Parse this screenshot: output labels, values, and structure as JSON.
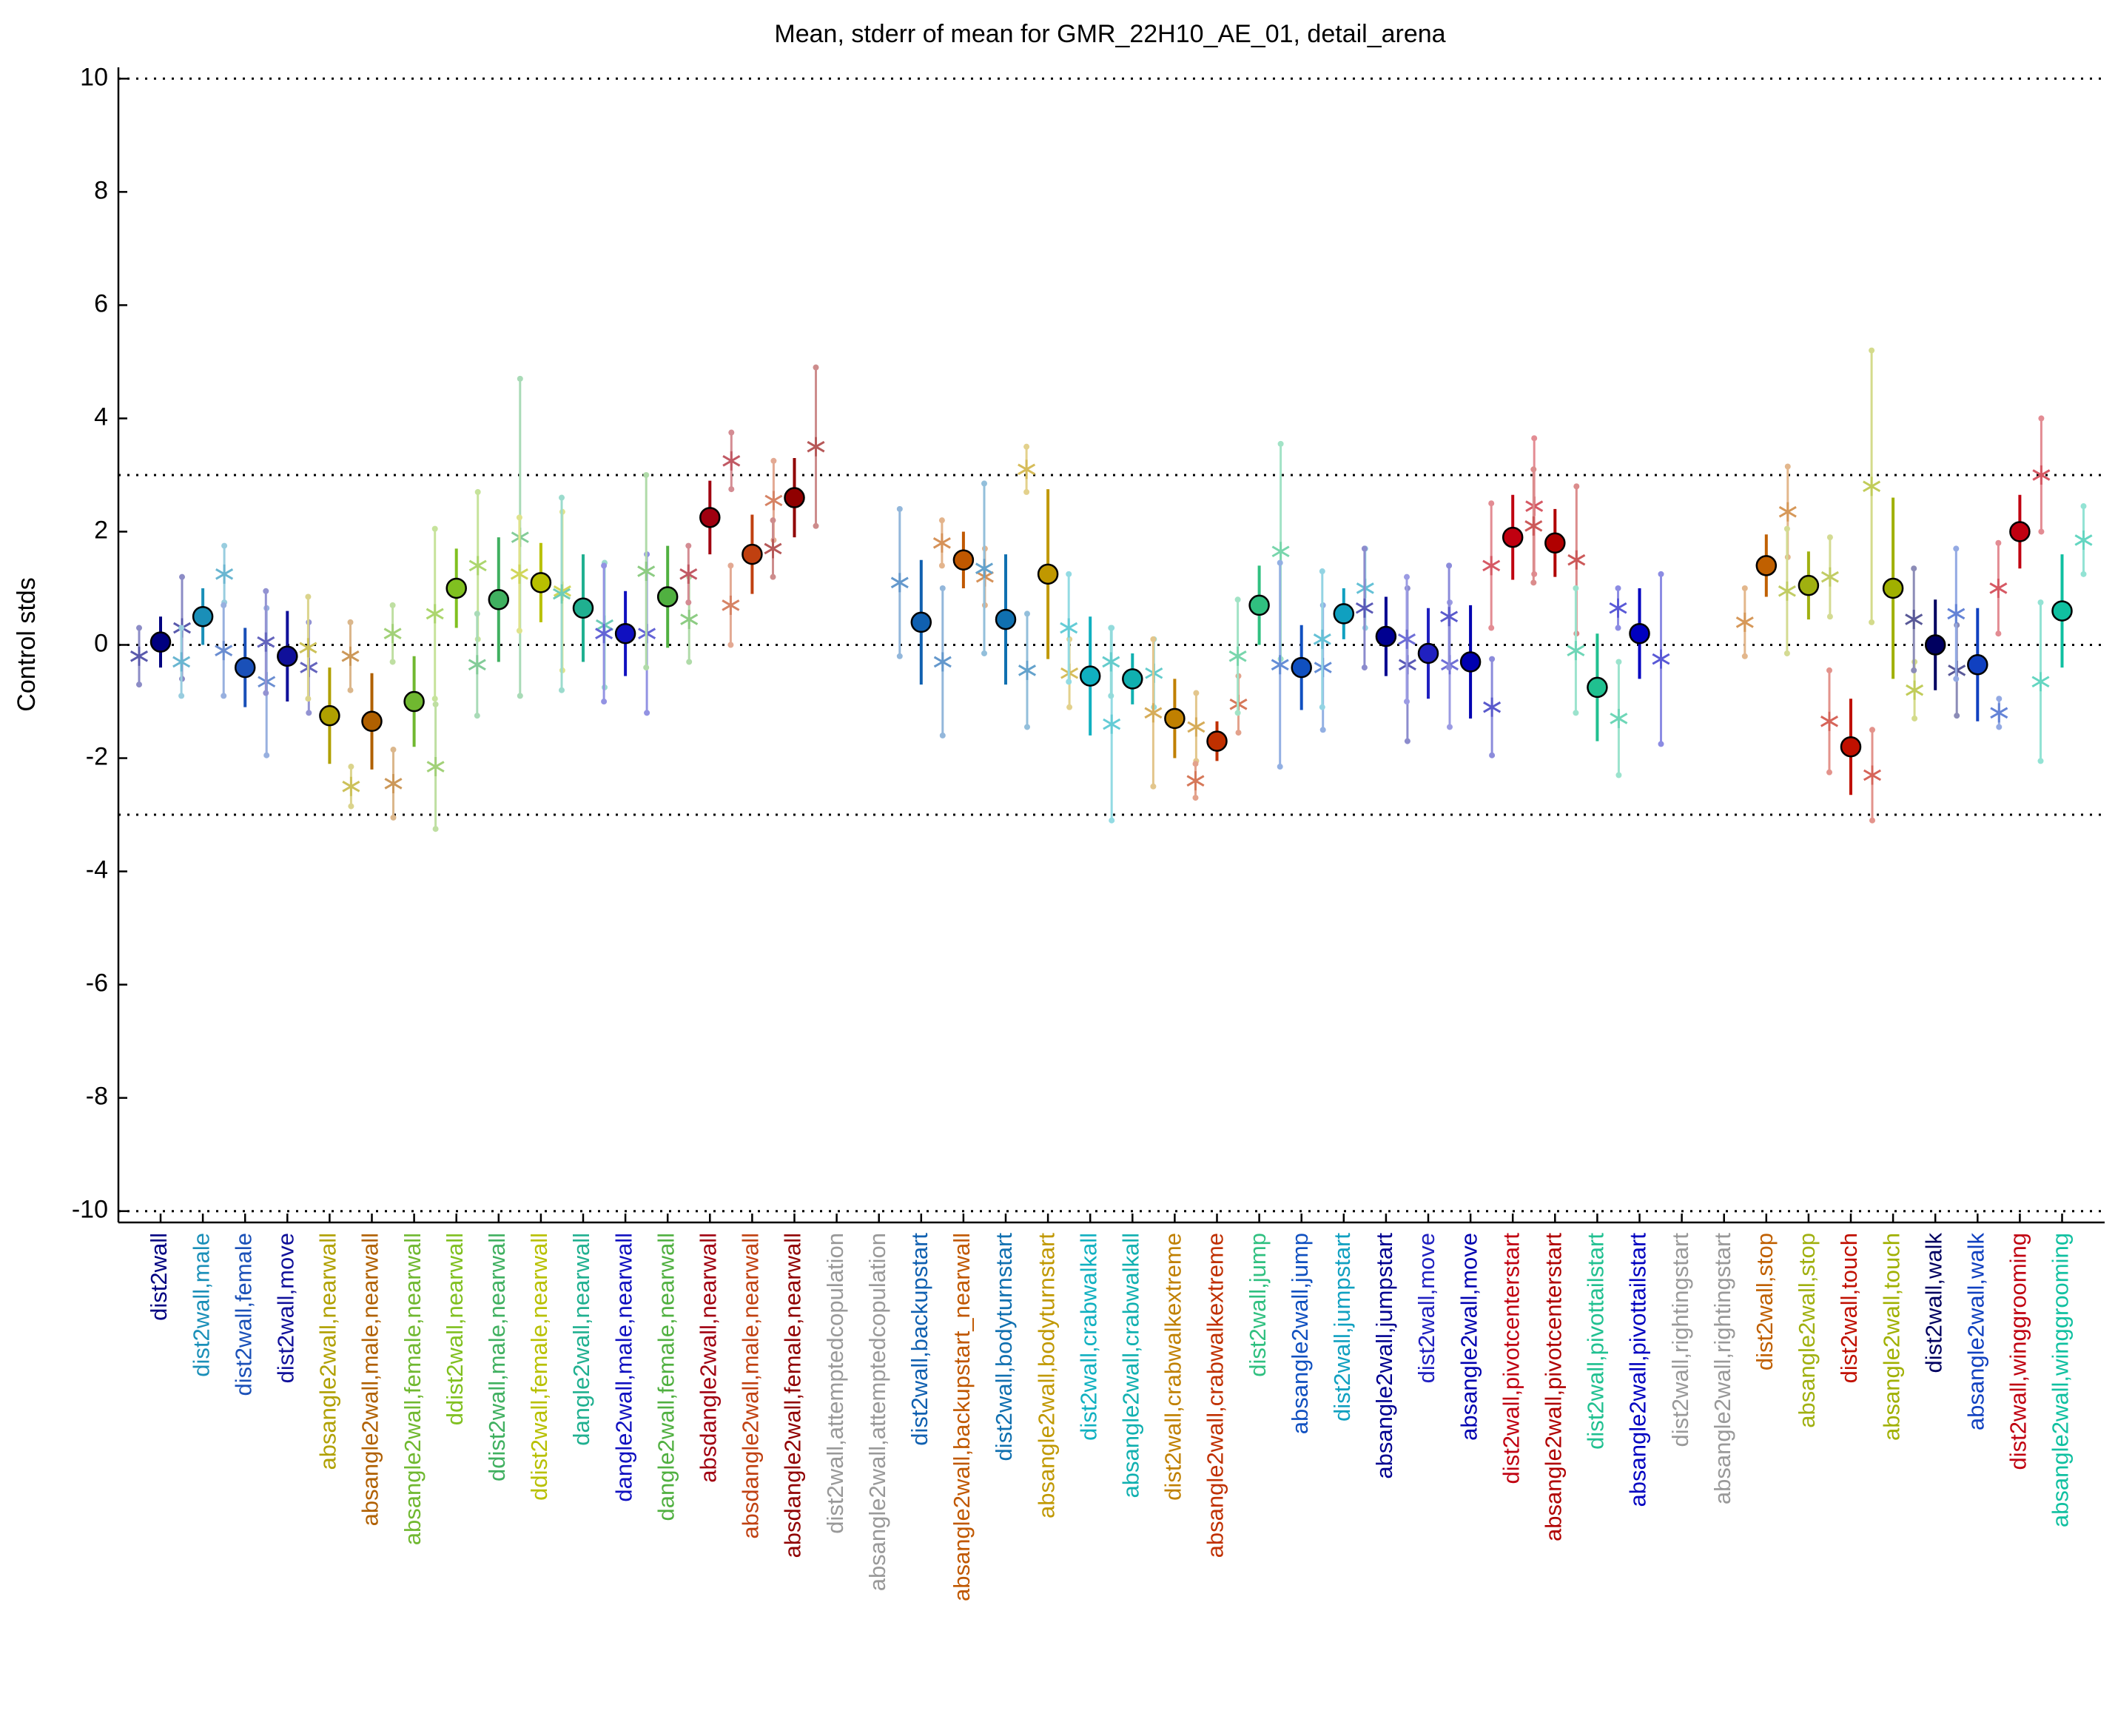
{
  "chart_data": {
    "type": "errorbar",
    "title": "Mean, stderr of mean for GMR_22H10_AE_01, detail_arena",
    "ylabel": "Control stds",
    "ylim": [
      -10.2,
      10.2
    ],
    "yticks": [
      -10,
      -8,
      -6,
      -4,
      -2,
      0,
      2,
      4,
      6,
      8,
      10
    ],
    "reference_lines": [
      10,
      3,
      0,
      -3,
      -10
    ],
    "points": [
      {
        "label": "dist2wall",
        "color": "#000080",
        "mean": 0.05,
        "err": 0.45,
        "stars": [
          [
            -0.2,
            0.5
          ],
          [
            0.3,
            0.9
          ]
        ]
      },
      {
        "label": "dist2wall,male",
        "color": "#1a8fb8",
        "mean": 0.5,
        "err": 0.5,
        "stars": [
          [
            -0.3,
            0.6
          ],
          [
            1.25,
            0.5
          ]
        ]
      },
      {
        "label": "dist2wall,female",
        "color": "#1a50b8",
        "mean": -0.4,
        "err": 0.7,
        "stars": [
          [
            -0.1,
            0.8
          ],
          [
            -0.65,
            1.3
          ]
        ]
      },
      {
        "label": "dist2wall,move",
        "color": "#10109a",
        "mean": -0.2,
        "err": 0.8,
        "stars": [
          [
            0.05,
            0.9
          ],
          [
            -0.4,
            0.8
          ]
        ]
      },
      {
        "label": "absangle2wall,nearwall",
        "color": "#b0a000",
        "mean": -1.25,
        "err": 0.85,
        "stars": [
          [
            -0.05,
            0.9
          ],
          [
            -2.5,
            0.35
          ]
        ]
      },
      {
        "label": "absangle2wall,male,nearwall",
        "color": "#b06000",
        "mean": -1.35,
        "err": 0.85,
        "stars": [
          [
            -0.2,
            0.6
          ],
          [
            -2.45,
            0.6
          ]
        ]
      },
      {
        "label": "absangle2wall,female,nearwall",
        "color": "#70b830",
        "mean": -1.0,
        "err": 0.8,
        "stars": [
          [
            0.2,
            0.5
          ],
          [
            -2.15,
            1.1
          ]
        ]
      },
      {
        "label": "ddist2wall,nearwall",
        "color": "#80c020",
        "mean": 1.0,
        "err": 0.7,
        "stars": [
          [
            0.55,
            1.5
          ],
          [
            1.4,
            1.3
          ]
        ]
      },
      {
        "label": "ddist2wall,male,nearwall",
        "color": "#40b060",
        "mean": 0.8,
        "err": 1.1,
        "stars": [
          [
            -0.35,
            0.9
          ],
          [
            1.9,
            2.8
          ]
        ]
      },
      {
        "label": "ddist2wall,female,nearwall",
        "color": "#b8c000",
        "mean": 1.1,
        "err": 0.7,
        "stars": [
          [
            1.25,
            1.0
          ],
          [
            0.95,
            1.4
          ]
        ]
      },
      {
        "label": "dangle2wall,nearwall",
        "color": "#20b090",
        "mean": 0.65,
        "err": 0.95,
        "stars": [
          [
            0.9,
            1.7
          ],
          [
            0.35,
            1.1
          ]
        ]
      },
      {
        "label": "dangle2wall,male,nearwall",
        "color": "#1010c0",
        "mean": 0.2,
        "err": 0.75,
        "stars": [
          [
            0.2,
            1.2
          ],
          [
            0.2,
            1.4
          ]
        ]
      },
      {
        "label": "dangle2wall,female,nearwall",
        "color": "#50b040",
        "mean": 0.85,
        "err": 0.9,
        "stars": [
          [
            1.3,
            1.7
          ],
          [
            0.45,
            0.75
          ]
        ]
      },
      {
        "label": "absdangle2wall,nearwall",
        "color": "#a00010",
        "mean": 2.25,
        "err": 0.65,
        "stars": [
          [
            1.25,
            0.5
          ],
          [
            3.25,
            0.5
          ]
        ]
      },
      {
        "label": "absdangle2wall,male,nearwall",
        "color": "#c04010",
        "mean": 1.6,
        "err": 0.7,
        "stars": [
          [
            0.7,
            0.7
          ],
          [
            2.55,
            0.7
          ]
        ]
      },
      {
        "label": "absdangle2wall,female,nearwall",
        "color": "#900000",
        "mean": 2.6,
        "err": 0.7,
        "stars": [
          [
            1.7,
            0.5
          ],
          [
            3.5,
            1.4
          ]
        ]
      },
      {
        "label": "dist2wall,attemptedcopulation",
        "color": "#999999"
      },
      {
        "label": "absangle2wall,attemptedcopulation",
        "color": "#999999"
      },
      {
        "label": "dist2wall,backupstart",
        "color": "#1060b0",
        "mean": 0.4,
        "err": 1.1,
        "stars": [
          [
            1.1,
            1.3
          ],
          [
            -0.3,
            1.3
          ]
        ]
      },
      {
        "label": "absangle2wall,backupstart_nearwall",
        "color": "#c05800",
        "mean": 1.5,
        "err": 0.5,
        "stars": [
          [
            1.8,
            0.4
          ],
          [
            1.2,
            0.5
          ]
        ]
      },
      {
        "label": "dist2wall,bodyturnstart",
        "color": "#1070b0",
        "mean": 0.45,
        "err": 1.15,
        "stars": [
          [
            1.35,
            1.5
          ],
          [
            -0.45,
            1.0
          ]
        ]
      },
      {
        "label": "absangle2wall,bodyturnstart",
        "color": "#c09800",
        "mean": 1.25,
        "err": 1.5,
        "stars": [
          [
            3.1,
            0.4
          ],
          [
            -0.5,
            0.6
          ]
        ]
      },
      {
        "label": "dist2wall,crabwalkall",
        "color": "#10b0c0",
        "mean": -0.55,
        "err": 1.05,
        "stars": [
          [
            0.3,
            0.95
          ],
          [
            -1.4,
            1.7
          ]
        ]
      },
      {
        "label": "absangle2wall,crabwalkall",
        "color": "#10b0b0",
        "mean": -0.6,
        "err": 0.45,
        "stars": [
          [
            -0.3,
            0.6
          ],
          [
            -0.5,
            0.6
          ]
        ]
      },
      {
        "label": "dist2wall,crabwalkextreme",
        "color": "#c08000",
        "mean": -1.3,
        "err": 0.7,
        "stars": [
          [
            -1.2,
            1.3
          ],
          [
            -1.45,
            0.6
          ]
        ]
      },
      {
        "label": "absangle2wall,crabwalkextreme",
        "color": "#c03000",
        "mean": -1.7,
        "err": 0.35,
        "stars": [
          [
            -2.4,
            0.3
          ],
          [
            -1.05,
            0.5
          ]
        ]
      },
      {
        "label": "dist2wall,jump",
        "color": "#30c080",
        "mean": 0.7,
        "err": 0.7,
        "stars": [
          [
            -0.2,
            1.0
          ],
          [
            1.65,
            1.9
          ]
        ]
      },
      {
        "label": "absangle2wall,jump",
        "color": "#1050c0",
        "mean": -0.4,
        "err": 0.75,
        "stars": [
          [
            -0.35,
            1.8
          ],
          [
            -0.4,
            1.1
          ]
        ]
      },
      {
        "label": "dist2wall,jumpstart",
        "color": "#10a0c0",
        "mean": 0.55,
        "err": 0.45,
        "stars": [
          [
            0.1,
            1.2
          ],
          [
            1.0,
            0.7
          ]
        ]
      },
      {
        "label": "absangle2wall,jumpstart",
        "color": "#000090",
        "mean": 0.15,
        "err": 0.7,
        "stars": [
          [
            0.65,
            1.05
          ],
          [
            -0.35,
            1.35
          ]
        ]
      },
      {
        "label": "dist2wall,move",
        "color": "#2020c0",
        "mean": -0.15,
        "err": 0.8,
        "stars": [
          [
            0.1,
            1.1
          ],
          [
            -0.35,
            1.1
          ]
        ]
      },
      {
        "label": "absangle2wall,move",
        "color": "#0000b0",
        "mean": -0.3,
        "err": 1.0,
        "stars": [
          [
            0.5,
            0.9
          ],
          [
            -1.1,
            0.85
          ]
        ]
      },
      {
        "label": "dist2wall,pivotcenterstart",
        "color": "#c00010",
        "mean": 1.9,
        "err": 0.75,
        "stars": [
          [
            1.4,
            1.1
          ],
          [
            2.45,
            1.2
          ]
        ]
      },
      {
        "label": "absangle2wall,pivotcenterstart",
        "color": "#b00000",
        "mean": 1.8,
        "err": 0.6,
        "stars": [
          [
            2.1,
            1.0
          ],
          [
            1.5,
            1.3
          ]
        ]
      },
      {
        "label": "dist2wall,pivottailstart",
        "color": "#20c090",
        "mean": -0.75,
        "err": 0.95,
        "stars": [
          [
            -0.1,
            1.1
          ],
          [
            -1.3,
            1.0
          ]
        ]
      },
      {
        "label": "absangle2wall,pivottailstart",
        "color": "#0000c0",
        "mean": 0.2,
        "err": 0.8,
        "stars": [
          [
            0.65,
            0.35
          ],
          [
            -0.25,
            1.5
          ]
        ]
      },
      {
        "label": "dist2wall,rightingstart",
        "color": "#999999"
      },
      {
        "label": "absangle2wall,rightingstart",
        "color": "#999999"
      },
      {
        "label": "dist2wall,stop",
        "color": "#c06000",
        "mean": 1.4,
        "err": 0.55,
        "stars": [
          [
            0.4,
            0.6
          ],
          [
            2.35,
            0.8
          ]
        ]
      },
      {
        "label": "absangle2wall,stop",
        "color": "#a0b010",
        "mean": 1.05,
        "err": 0.6,
        "stars": [
          [
            0.95,
            1.1
          ],
          [
            1.2,
            0.7
          ]
        ]
      },
      {
        "label": "dist2wall,touch",
        "color": "#c01000",
        "mean": -1.8,
        "err": 0.85,
        "stars": [
          [
            -1.35,
            0.9
          ],
          [
            -2.3,
            0.8
          ]
        ]
      },
      {
        "label": "absangle2wall,touch",
        "color": "#a0b000",
        "mean": 1.0,
        "err": 1.6,
        "stars": [
          [
            2.8,
            2.4
          ],
          [
            -0.8,
            0.5
          ]
        ]
      },
      {
        "label": "dist2wall,walk",
        "color": "#000060",
        "mean": 0.0,
        "err": 0.8,
        "stars": [
          [
            0.45,
            0.9
          ],
          [
            -0.45,
            0.8
          ]
        ]
      },
      {
        "label": "absangle2wall,walk",
        "color": "#1040c0",
        "mean": -0.35,
        "err": 1.0,
        "stars": [
          [
            0.55,
            1.15
          ],
          [
            -1.2,
            0.25
          ]
        ]
      },
      {
        "label": "dist2wall,winggrooming",
        "color": "#c00010",
        "mean": 2.0,
        "err": 0.65,
        "stars": [
          [
            1.0,
            0.8
          ],
          [
            3.0,
            1.0
          ]
        ]
      },
      {
        "label": "absangle2wall,winggrooming",
        "color": "#10c0a0",
        "mean": 0.6,
        "err": 1.0,
        "stars": [
          [
            -0.65,
            1.4
          ],
          [
            1.85,
            0.6
          ]
        ]
      }
    ]
  }
}
